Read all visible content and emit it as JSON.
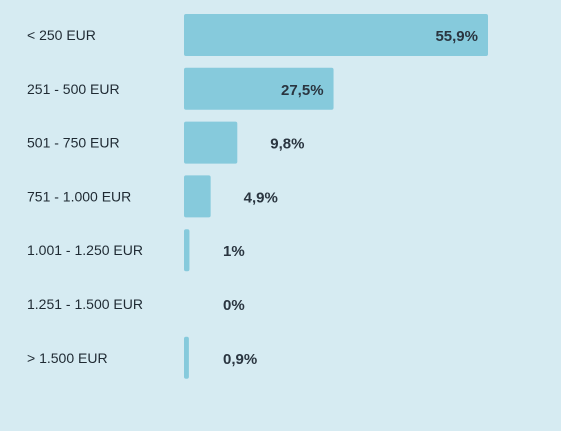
{
  "chart_data": {
    "type": "bar",
    "orientation": "horizontal",
    "categories": [
      "< 250 EUR",
      "251 - 500 EUR",
      "501 - 750 EUR",
      "751 - 1.000 EUR",
      "1.001 - 1.250 EUR",
      "1.251 - 1.500 EUR",
      "> 1.500 EUR"
    ],
    "values": [
      55.9,
      27.5,
      9.8,
      4.9,
      1,
      0,
      0.9
    ],
    "value_labels": [
      "55,9%",
      "27,5%",
      "9,8%",
      "4,9%",
      "1%",
      "0%",
      "0,9%"
    ],
    "title": "",
    "xlabel": "",
    "ylabel": "",
    "xlim": [
      0,
      55.9
    ],
    "grid": false,
    "legend": "none",
    "bar_color": "#86cadc",
    "background_color": "#d6ebf2"
  }
}
